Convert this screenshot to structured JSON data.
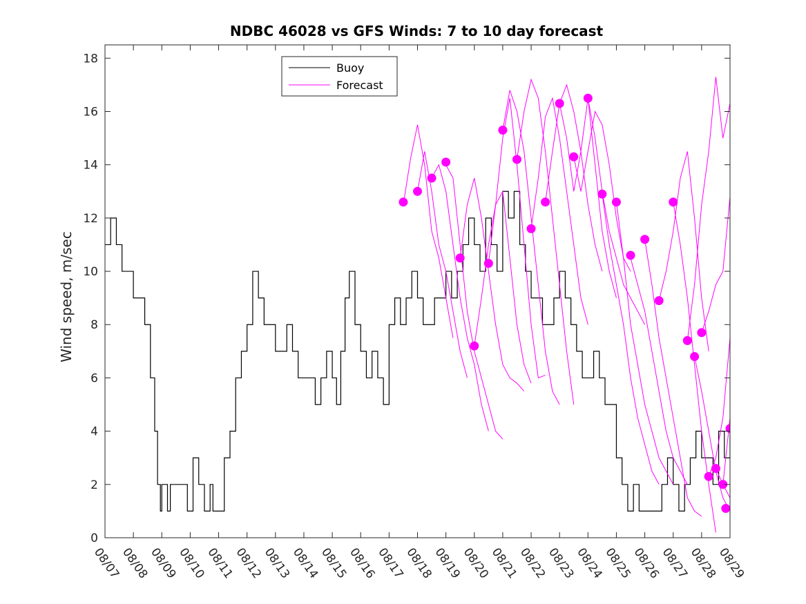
{
  "chart_data": {
    "type": "line",
    "title": "NDBC 46028 vs GFS Winds: 7 to 10 day forecast",
    "xlabel": "",
    "ylabel": "Wind speed, m/sec",
    "xlim": [
      0,
      22
    ],
    "ylim": [
      0,
      18.5
    ],
    "yticks": [
      0,
      2,
      4,
      6,
      8,
      10,
      12,
      14,
      16,
      18
    ],
    "xtick_labels": [
      "08/07",
      "08/08",
      "08/09",
      "08/10",
      "08/11",
      "08/12",
      "08/13",
      "08/14",
      "08/15",
      "08/16",
      "08/17",
      "08/18",
      "08/19",
      "08/20",
      "08/21",
      "08/22",
      "08/23",
      "08/24",
      "08/25",
      "08/26",
      "08/27",
      "08/28",
      "08/29"
    ],
    "grid": false,
    "legend": {
      "placement": "top-center",
      "entries": [
        "Buoy",
        "Forecast"
      ]
    },
    "colors": {
      "buoy": "#000000",
      "forecast": "#ff00ff",
      "axes": "#262626"
    },
    "buoy": {
      "name": "Buoy",
      "x": [
        0,
        0.2,
        0.4,
        0.6,
        0.8,
        1.0,
        1.2,
        1.4,
        1.6,
        1.75,
        1.85,
        1.95,
        2.0,
        2.1,
        2.2,
        2.3,
        2.5,
        2.7,
        2.9,
        3.1,
        3.3,
        3.5,
        3.7,
        3.8,
        4.0,
        4.2,
        4.4,
        4.6,
        4.8,
        4.9,
        5.0,
        5.2,
        5.4,
        5.6,
        5.8,
        6.0,
        6.2,
        6.4,
        6.6,
        6.8,
        7.0,
        7.2,
        7.4,
        7.6,
        7.8,
        8.0,
        8.15,
        8.3,
        8.45,
        8.6,
        8.8,
        9.0,
        9.2,
        9.4,
        9.6,
        9.8,
        10.0,
        10.2,
        10.4,
        10.6,
        10.8,
        11.0,
        11.2,
        11.4,
        11.6,
        11.8,
        12.0,
        12.2,
        12.4,
        12.6,
        12.8,
        13.0,
        13.2,
        13.4,
        13.6,
        13.8,
        14.0,
        14.2,
        14.4,
        14.6,
        14.8,
        15.0,
        15.2,
        15.4,
        15.6,
        15.8,
        16.0,
        16.2,
        16.4,
        16.6,
        16.8,
        17.0,
        17.2,
        17.4,
        17.6,
        17.8,
        18.0,
        18.2,
        18.4,
        18.6,
        18.8,
        19.0,
        19.2,
        19.4,
        19.6,
        19.8,
        20.0,
        20.2,
        20.4,
        20.6,
        20.8,
        21.0,
        21.2,
        21.4,
        21.6,
        21.8,
        22.0
      ],
      "values": [
        11,
        12,
        11,
        10,
        10,
        9,
        9,
        8,
        6,
        4,
        2,
        1,
        2,
        2,
        1,
        2,
        2,
        2,
        1,
        3,
        2,
        1,
        2,
        1,
        1,
        3,
        4,
        6,
        7,
        7,
        8,
        10,
        9,
        8,
        8,
        7,
        7,
        8,
        7,
        6,
        6,
        6,
        5,
        6,
        7,
        6,
        5,
        7,
        9,
        10,
        8,
        7,
        6,
        7,
        6,
        5,
        8,
        9,
        8,
        9,
        10,
        9,
        8,
        8,
        9,
        9,
        10,
        9,
        10,
        11,
        12,
        11,
        10,
        12,
        11,
        10,
        13,
        12,
        13,
        11,
        10,
        9,
        9,
        8,
        8,
        9,
        10,
        9,
        8,
        7,
        6,
        6,
        7,
        6,
        5,
        5,
        3,
        2,
        1,
        2,
        1,
        1,
        1,
        1,
        2,
        3,
        2,
        1,
        2,
        3,
        4,
        3,
        3,
        2,
        4,
        3,
        4
      ]
    },
    "forecast_series": [
      {
        "name": "Forecast",
        "x": [
          10.5,
          10.75,
          11.0,
          11.25,
          11.5,
          11.75,
          12.0,
          12.25
        ],
        "values": [
          12.5,
          14.2,
          15.5,
          14.0,
          11.5,
          10.5,
          9.0,
          7.5
        ]
      },
      {
        "name": "Forecast",
        "x": [
          11.0,
          11.25,
          11.5,
          11.75,
          12.0,
          12.25,
          12.5,
          12.75
        ],
        "values": [
          13.0,
          14.5,
          13.0,
          11.0,
          10.0,
          8.5,
          7.0,
          6.0
        ]
      },
      {
        "name": "Forecast",
        "x": [
          11.5,
          11.75,
          12.0,
          12.25,
          12.5,
          12.75,
          13.0,
          13.25,
          13.5
        ],
        "values": [
          13.5,
          14.0,
          13.0,
          11.0,
          9.0,
          7.5,
          6.5,
          5.0,
          4.0
        ]
      },
      {
        "name": "Forecast",
        "x": [
          12.0,
          12.25,
          12.5,
          12.75,
          13.0,
          13.25,
          13.5,
          13.75,
          14.0
        ],
        "values": [
          14.0,
          13.5,
          11.0,
          8.5,
          7.0,
          6.0,
          5.0,
          4.0,
          3.7
        ]
      },
      {
        "name": "Forecast",
        "x": [
          12.5,
          12.75,
          13.0,
          13.25,
          13.5,
          13.75,
          14.0,
          14.25,
          14.5,
          14.75
        ],
        "values": [
          10.5,
          12.5,
          13.5,
          12.0,
          10.0,
          8.0,
          6.5,
          6.0,
          5.8,
          5.5
        ]
      },
      {
        "name": "Forecast",
        "x": [
          13.0,
          13.25,
          13.5,
          13.75,
          14.0,
          14.25,
          14.5,
          14.75,
          15.0
        ],
        "values": [
          7.2,
          9.0,
          11.0,
          12.5,
          13.0,
          10.5,
          8.0,
          6.5,
          5.8
        ]
      },
      {
        "name": "Forecast",
        "x": [
          13.5,
          13.75,
          14.0,
          14.25,
          14.5,
          14.75,
          15.0,
          15.25,
          15.5
        ],
        "values": [
          10.3,
          12.5,
          15.0,
          16.5,
          14.0,
          11.0,
          8.0,
          6.0,
          6.1
        ]
      },
      {
        "name": "Forecast",
        "x": [
          14.0,
          14.25,
          14.5,
          14.75,
          15.0,
          15.25,
          15.5,
          15.75,
          16.0
        ],
        "values": [
          15.3,
          16.8,
          16.0,
          14.5,
          12.0,
          9.5,
          7.0,
          5.5,
          5.0
        ]
      },
      {
        "name": "Forecast",
        "x": [
          14.5,
          14.75,
          15.0,
          15.25,
          15.5,
          15.75,
          16.0,
          16.25,
          16.5
        ],
        "values": [
          14.2,
          16.0,
          17.2,
          16.5,
          14.5,
          12.0,
          9.5,
          7.0,
          5.0
        ]
      },
      {
        "name": "Forecast",
        "x": [
          15.0,
          15.25,
          15.5,
          15.75,
          16.0,
          16.25,
          16.5,
          16.75,
          17.0
        ],
        "values": [
          11.6,
          13.5,
          15.8,
          16.5,
          15.0,
          13.0,
          11.0,
          9.0,
          8.0
        ]
      },
      {
        "name": "Forecast",
        "x": [
          15.5,
          15.75,
          16.0,
          16.25,
          16.5,
          16.75,
          17.0,
          17.25,
          17.5
        ],
        "values": [
          12.6,
          14.5,
          16.3,
          17.0,
          16.0,
          14.5,
          12.5,
          11.0,
          10.0
        ]
      },
      {
        "name": "Forecast",
        "x": [
          16.0,
          16.25,
          16.5,
          16.75,
          17.0,
          17.25,
          17.5,
          17.75,
          18.0
        ],
        "values": [
          16.3,
          15.0,
          13.0,
          14.5,
          16.5,
          14.0,
          11.5,
          10.0,
          9.0
        ]
      },
      {
        "name": "Forecast",
        "x": [
          16.5,
          16.75,
          17.0,
          17.25,
          17.5,
          17.75,
          18.0,
          18.25,
          18.5
        ],
        "values": [
          14.3,
          13.0,
          14.5,
          16.0,
          15.5,
          14.0,
          12.0,
          10.5,
          10.0
        ]
      },
      {
        "name": "Forecast",
        "x": [
          17.0,
          17.25,
          17.5,
          17.75,
          18.0,
          18.25,
          18.5,
          18.75,
          19.0
        ],
        "values": [
          16.5,
          15.0,
          13.0,
          11.5,
          10.5,
          9.5,
          9.0,
          8.5,
          8.0
        ]
      },
      {
        "name": "Forecast",
        "x": [
          17.5,
          17.75,
          18.0,
          18.25,
          18.5,
          18.75,
          19.0,
          19.25,
          19.5
        ],
        "values": [
          12.9,
          11.0,
          9.5,
          8.0,
          6.0,
          4.5,
          3.5,
          2.5,
          2.0
        ]
      },
      {
        "name": "Forecast",
        "x": [
          18.0,
          18.25,
          18.5,
          18.75,
          19.0,
          19.25,
          19.5,
          19.75,
          20.0
        ],
        "values": [
          12.6,
          10.5,
          8.0,
          6.5,
          5.0,
          4.0,
          3.0,
          2.5,
          2.0
        ]
      },
      {
        "name": "Forecast",
        "x": [
          18.5,
          18.75,
          19.0,
          19.25,
          19.5,
          19.75,
          20.0,
          20.25,
          20.5
        ],
        "values": [
          10.5,
          9.5,
          8.5,
          7.0,
          5.5,
          4.0,
          3.0,
          2.5,
          2.0
        ]
      },
      {
        "name": "Forecast",
        "x": [
          19.0,
          19.25,
          19.5,
          19.75,
          20.0,
          20.25,
          20.5,
          20.75,
          21.0
        ],
        "values": [
          11.2,
          9.5,
          7.5,
          6.0,
          4.5,
          3.0,
          1.5,
          1.0,
          0.8
        ]
      },
      {
        "name": "Forecast",
        "x": [
          19.5,
          19.75,
          20.0,
          20.25,
          20.5,
          20.75,
          21.0,
          21.25
        ],
        "values": [
          8.9,
          10.0,
          11.5,
          13.5,
          14.5,
          12.0,
          9.0,
          7.0
        ]
      },
      {
        "name": "Forecast",
        "x": [
          20.0,
          20.25,
          20.5,
          20.75,
          21.0,
          21.25,
          21.5
        ],
        "values": [
          12.6,
          11.0,
          9.0,
          6.5,
          4.0,
          2.0,
          0.2
        ]
      },
      {
        "name": "Forecast",
        "x": [
          20.5,
          20.75,
          21.0,
          21.25,
          21.5,
          21.75,
          22.0
        ],
        "values": [
          7.4,
          9.5,
          12.5,
          14.5,
          17.3,
          15.0,
          16.3
        ]
      },
      {
        "name": "Forecast",
        "x": [
          20.75,
          21.0,
          21.25,
          21.5,
          21.75,
          22.0
        ],
        "values": [
          6.8,
          5.5,
          4.0,
          2.5,
          1.5,
          1.0
        ]
      },
      {
        "name": "Forecast",
        "x": [
          21.0,
          21.25,
          21.5,
          21.75,
          22.0
        ],
        "values": [
          7.7,
          8.5,
          9.5,
          10.0,
          12.8
        ]
      },
      {
        "name": "Forecast",
        "x": [
          21.25,
          21.5,
          21.75,
          22.0
        ],
        "values": [
          2.3,
          3.0,
          4.5,
          7.5
        ]
      },
      {
        "name": "Forecast",
        "x": [
          21.5,
          21.75,
          22.0
        ],
        "values": [
          2.6,
          2.0,
          1.5
        ]
      },
      {
        "name": "Forecast",
        "x": [
          21.75,
          22.0
        ],
        "values": [
          2.0,
          4.5
        ]
      }
    ],
    "forecast_markers": {
      "name": "Forecast",
      "x": [
        10.5,
        11.0,
        11.5,
        12.0,
        12.5,
        13.0,
        13.5,
        14.0,
        14.5,
        15.0,
        15.5,
        16.0,
        16.5,
        17.0,
        17.5,
        18.0,
        18.5,
        19.0,
        19.5,
        20.0,
        20.5,
        20.75,
        21.0,
        21.25,
        21.5,
        21.75,
        21.85,
        22.0
      ],
      "values": [
        12.6,
        13.0,
        13.5,
        14.1,
        10.5,
        7.2,
        10.3,
        15.3,
        14.2,
        11.6,
        12.6,
        16.3,
        14.3,
        16.5,
        12.9,
        12.6,
        10.6,
        11.2,
        8.9,
        12.6,
        7.4,
        6.8,
        7.7,
        2.3,
        2.6,
        2.0,
        1.1,
        4.1
      ]
    }
  }
}
